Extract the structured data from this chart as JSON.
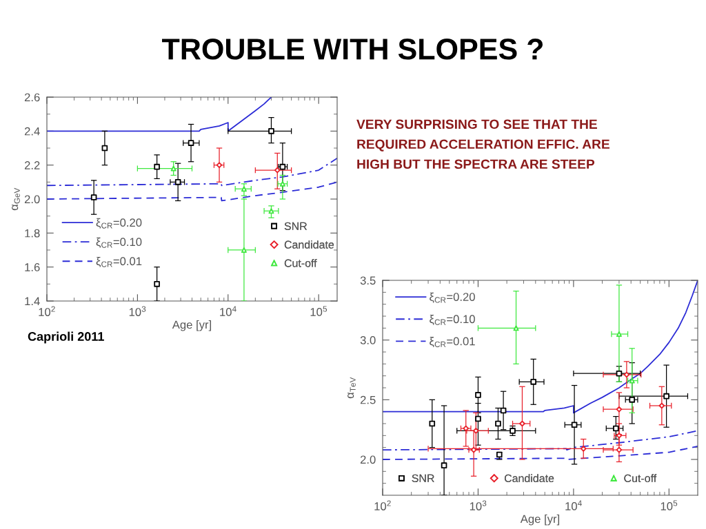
{
  "chart_data": [
    {
      "type": "scatter",
      "title": "TROUBLE WITH SLOPES ?",
      "xlabel": "Age [yr]",
      "ylabel": "α$_{GeV}$",
      "log": "x",
      "xlim": [
        100,
        160000
      ],
      "ylim": [
        1.4,
        2.6
      ],
      "xticks": [
        {
          "value": 100,
          "label": "10$^{2}$"
        },
        {
          "value": 200,
          "label": null
        },
        {
          "value": 300,
          "label": null
        },
        {
          "value": 400,
          "label": null
        },
        {
          "value": 500,
          "label": null
        },
        {
          "value": 600,
          "label": null
        },
        {
          "value": 700,
          "label": null
        },
        {
          "value": 800,
          "label": null
        },
        {
          "value": 900,
          "label": null
        },
        {
          "value": 1000,
          "label": "10$^{3}$"
        },
        {
          "value": 2000,
          "label": null
        },
        {
          "value": 3000,
          "label": null
        },
        {
          "value": 4000,
          "label": null
        },
        {
          "value": 5000,
          "label": null
        },
        {
          "value": 6000,
          "label": null
        },
        {
          "value": 7000,
          "label": null
        },
        {
          "value": 8000,
          "label": null
        },
        {
          "value": 9000,
          "label": null
        },
        {
          "value": 10000,
          "label": "10$^{4}$"
        },
        {
          "value": 20000,
          "label": null
        },
        {
          "value": 30000,
          "label": null
        },
        {
          "value": 40000,
          "label": null
        },
        {
          "value": 50000,
          "label": null
        },
        {
          "value": 60000,
          "label": null
        },
        {
          "value": 70000,
          "label": null
        },
        {
          "value": 80000,
          "label": null
        },
        {
          "value": 90000,
          "label": null
        },
        {
          "value": 100000,
          "label": "10$^{5}$"
        }
      ],
      "yticks": [
        1.4,
        {
          "value": 1.5,
          "label": null
        },
        1.6,
        {
          "value": 1.7,
          "label": null
        },
        1.8,
        {
          "value": 1.9,
          "label": null
        },
        {
          "value": 2.0,
          "label": "2.0"
        },
        {
          "value": 2.1,
          "label": null
        },
        2.2,
        {
          "value": 2.3,
          "label": null
        },
        2.4,
        {
          "value": 2.5,
          "label": null
        },
        2.6
      ],
      "legend": "bottom left",
      "annotations": [
        "Caprioli 2011"
      ],
      "series": [
        {
          "name": "ξ$_{CR}$=0.20",
          "type": "line",
          "color": "#2b2bd6",
          "line_style": "solid",
          "x": [
            100,
            4800,
            5000,
            8000,
            10000,
            10000,
            15000,
            20000,
            25000,
            30000
          ],
          "values": [
            2.4,
            2.4,
            2.41,
            2.43,
            2.45,
            2.4,
            2.47,
            2.52,
            2.56,
            2.6
          ]
        },
        {
          "name": "ξ$_{CR}$=0.10",
          "type": "line",
          "color": "#2b2bd6",
          "line_style": "dashdot",
          "x": [
            100,
            8400,
            8500,
            20000,
            40000,
            100000,
            160000
          ],
          "values": [
            2.08,
            2.09,
            2.08,
            2.11,
            2.13,
            2.17,
            2.24
          ]
        },
        {
          "name": "ξ$_{CR}$=0.01",
          "type": "line",
          "color": "#2b2bd6",
          "line_style": "dashed",
          "x": [
            100,
            8400,
            8500,
            20000,
            40000,
            100000,
            160000
          ],
          "values": [
            2.0,
            2.01,
            1.99,
            2.02,
            2.04,
            2.07,
            2.1
          ]
        },
        {
          "name": "SNR",
          "type": "scatter",
          "color": "#000000",
          "marker": "square",
          "x": [
            330,
            435,
            1640,
            2800,
            3900,
            30000,
            40000,
            1640
          ],
          "values": [
            2.01,
            2.3,
            2.19,
            2.1,
            2.33,
            2.4,
            2.19,
            1.5
          ],
          "errors": [
            [
              1.91,
              2.11
            ],
            [
              2.2,
              2.4
            ],
            [
              2.12,
              2.26
            ],
            [
              1.99,
              2.21
            ],
            [
              2.22,
              2.44
            ],
            [
              2.33,
              2.48
            ],
            [
              2.05,
              2.33
            ],
            [
              1.4,
              1.6
            ]
          ],
          "xerrors": [
            null,
            null,
            null,
            [
              2300,
              3300
            ],
            [
              3200,
              4800
            ],
            [
              10000,
              50000
            ],
            [
              36000,
              45000
            ],
            null
          ]
        },
        {
          "name": "Candidate",
          "type": "scatter",
          "color": "#e8202a",
          "marker": "diamond",
          "x": [
            8000,
            35000
          ],
          "values": [
            2.2,
            2.17
          ],
          "errors": [
            [
              2.1,
              2.3
            ],
            [
              2.06,
              2.27
            ]
          ],
          "xerrors": [
            [
              7000,
              9000
            ],
            [
              20000,
              50000
            ]
          ]
        },
        {
          "name": "Cut-off",
          "type": "scatter",
          "color": "#3ee83e",
          "marker": "triangle",
          "x": [
            2500,
            15000,
            30000,
            40000,
            15000
          ],
          "values": [
            2.18,
            2.06,
            1.93,
            2.09,
            1.7
          ],
          "errors": [
            [
              2.14,
              2.22
            ],
            [
              2.02,
              2.09
            ],
            [
              1.89,
              1.96
            ],
            [
              2.0,
              2.14
            ],
            [
              1.4,
              2.0
            ]
          ],
          "xerrors": [
            [
              1000,
              4000
            ],
            [
              12000,
              18000
            ],
            [
              25000,
              36000
            ],
            [
              35500,
              45000
            ],
            [
              10000,
              20000
            ]
          ]
        }
      ]
    },
    {
      "type": "other",
      "annotations": [
        "VERY SURPRISING TO SEE THAT THE\nREQUIRED ACCELERATION EFFIC. ARE\nHIGH BUT THE SPECTRA ARE STEEP"
      ]
    },
    {
      "type": "scatter",
      "xlabel": "Age [yr]",
      "ylabel": "α$_{TeV}$",
      "log": "x",
      "xlim": [
        100,
        200000
      ],
      "ylim": [
        1.7,
        3.5
      ],
      "xticks": [
        {
          "value": 100,
          "label": "10$^{2}$"
        },
        {
          "value": 200,
          "label": null
        },
        {
          "value": 300,
          "label": null
        },
        {
          "value": 400,
          "label": null
        },
        {
          "value": 500,
          "label": null
        },
        {
          "value": 600,
          "label": null
        },
        {
          "value": 700,
          "label": null
        },
        {
          "value": 800,
          "label": null
        },
        {
          "value": 900,
          "label": null
        },
        {
          "value": 1000,
          "label": "10$^{3}$"
        },
        {
          "value": 2000,
          "label": null
        },
        {
          "value": 3000,
          "label": null
        },
        {
          "value": 4000,
          "label": null
        },
        {
          "value": 5000,
          "label": null
        },
        {
          "value": 6000,
          "label": null
        },
        {
          "value": 7000,
          "label": null
        },
        {
          "value": 8000,
          "label": null
        },
        {
          "value": 9000,
          "label": null
        },
        {
          "value": 10000,
          "label": "10$^{4}$"
        },
        {
          "value": 20000,
          "label": null
        },
        {
          "value": 30000,
          "label": null
        },
        {
          "value": 40000,
          "label": null
        },
        {
          "value": 50000,
          "label": null
        },
        {
          "value": 60000,
          "label": null
        },
        {
          "value": 70000,
          "label": null
        },
        {
          "value": 80000,
          "label": null
        },
        {
          "value": 90000,
          "label": null
        },
        {
          "value": 100000,
          "label": "10$^{5}$"
        }
      ],
      "yticks": [
        {
          "value": 1.8,
          "label": null
        },
        {
          "value": 1.9,
          "label": null
        },
        {
          "value": 2.0,
          "label": "2.0"
        },
        {
          "value": 2.1,
          "label": null
        },
        {
          "value": 2.2,
          "label": null
        },
        {
          "value": 2.3,
          "label": null
        },
        {
          "value": 2.4,
          "label": null
        },
        2.5,
        {
          "value": 2.6,
          "label": null
        },
        {
          "value": 2.7,
          "label": null
        },
        {
          "value": 2.8,
          "label": null
        },
        {
          "value": 2.9,
          "label": null
        },
        {
          "value": 3.0,
          "label": "3.0"
        },
        {
          "value": 3.1,
          "label": null
        },
        {
          "value": 3.2,
          "label": null
        },
        {
          "value": 3.3,
          "label": null
        },
        {
          "value": 3.4,
          "label": null
        },
        3.5
      ],
      "legend": "top left",
      "series": [
        {
          "name": "ξ$_{CR}$=0.20",
          "type": "line",
          "color": "#2b2bd6",
          "line_style": "solid",
          "x": [
            100,
            4800,
            5000,
            8000,
            10000,
            10000,
            15000,
            20000,
            30000,
            40000,
            50000,
            60000,
            80000,
            100000,
            125000,
            150000,
            175000,
            200000
          ],
          "values": [
            2.4,
            2.4,
            2.41,
            2.43,
            2.45,
            2.39,
            2.47,
            2.52,
            2.6,
            2.67,
            2.72,
            2.78,
            2.88,
            2.98,
            3.1,
            3.23,
            3.37,
            3.5
          ]
        },
        {
          "name": "ξ$_{CR}$=0.10",
          "type": "line",
          "color": "#2b2bd6",
          "line_style": "dashdot",
          "x": [
            100,
            8400,
            8500,
            10000,
            30000,
            100000,
            200000
          ],
          "values": [
            2.08,
            2.09,
            2.08,
            2.1,
            2.14,
            2.19,
            2.24
          ]
        },
        {
          "name": "ξ$_{CR}$=0.01",
          "type": "line",
          "color": "#2b2bd6",
          "line_style": "dashed",
          "x": [
            100,
            8400,
            8500,
            30000,
            100000,
            200000
          ],
          "values": [
            2.0,
            2.01,
            2.0,
            2.03,
            2.06,
            2.11
          ]
        },
        {
          "name": "SNR",
          "type": "scatter",
          "color": "#000000",
          "marker": "square",
          "x": [
            330,
            440,
            1000,
            1000,
            1620,
            1840,
            2300,
            1670,
            3800,
            10200,
            27800,
            30000,
            41000,
            94000
          ],
          "values": [
            2.3,
            1.95,
            2.54,
            2.34,
            2.3,
            2.41,
            2.24,
            2.04,
            2.65,
            2.29,
            2.26,
            2.72,
            2.5,
            2.53
          ],
          "errors": [
            [
              2.1,
              2.5
            ],
            [
              1.7,
              2.45
            ],
            [
              2.39,
              2.69
            ],
            [
              2.12,
              2.47
            ],
            [
              2.17,
              2.43
            ],
            [
              2.25,
              2.57
            ],
            [
              2.2,
              2.28
            ],
            [
              2.0,
              2.06
            ],
            [
              2.46,
              2.84
            ],
            [
              1.96,
              2.62
            ],
            [
              2.17,
              2.36
            ],
            [
              2.65,
              2.78
            ],
            [
              2.3,
              2.81
            ],
            [
              2.27,
              2.79
            ]
          ],
          "xerrors": [
            null,
            null,
            null,
            null,
            null,
            null,
            [
              600,
              4000
            ],
            null,
            [
              2700,
              4900
            ],
            [
              8100,
              12000
            ],
            [
              22000,
              33000
            ],
            [
              10000,
              50000
            ],
            [
              35000,
              47000
            ],
            [
              30000,
              157000
            ]
          ]
        },
        {
          "name": "Candidate",
          "type": "scatter",
          "color": "#e8202a",
          "marker": "diamond",
          "x": [
            745,
            900,
            950,
            2900,
            12700,
            30000,
            30000,
            30000,
            36000,
            84000
          ],
          "values": [
            2.26,
            2.08,
            2.24,
            2.3,
            2.09,
            2.42,
            2.2,
            2.08,
            2.71,
            2.45
          ],
          "errors": [
            [
              2.11,
              2.41
            ],
            [
              1.86,
              2.24
            ],
            [
              2.08,
              2.39
            ],
            [
              2.0,
              2.61
            ],
            [
              2.01,
              2.17
            ],
            [
              2.21,
              2.56
            ],
            [
              2.12,
              2.3
            ],
            [
              1.98,
              2.2
            ],
            [
              2.6,
              2.82
            ],
            [
              2.29,
              2.61
            ]
          ],
          "xerrors": [
            [
              660,
              840
            ],
            [
              800,
              1030
            ],
            [
              760,
              1280
            ],
            [
              2300,
              3500
            ],
            [
              300,
              26000
            ],
            [
              20500,
              42000
            ],
            [
              26700,
              35400
            ],
            [
              20500,
              42000
            ],
            [
              20500,
              51000
            ],
            [
              63000,
              106000
            ]
          ]
        },
        {
          "name": "Cut-off",
          "type": "scatter",
          "color": "#3ee83e",
          "marker": "triangle",
          "x": [
            2500,
            30000,
            41000
          ],
          "values": [
            3.1,
            3.05,
            2.66
          ],
          "errors": [
            [
              2.8,
              3.41
            ],
            [
              2.65,
              3.46
            ],
            [
              2.39,
              2.93
            ]
          ],
          "xerrors": [
            [
              1000,
              4000
            ],
            [
              25000,
              37000
            ],
            [
              37000,
              47000
            ]
          ]
        }
      ]
    }
  ]
}
